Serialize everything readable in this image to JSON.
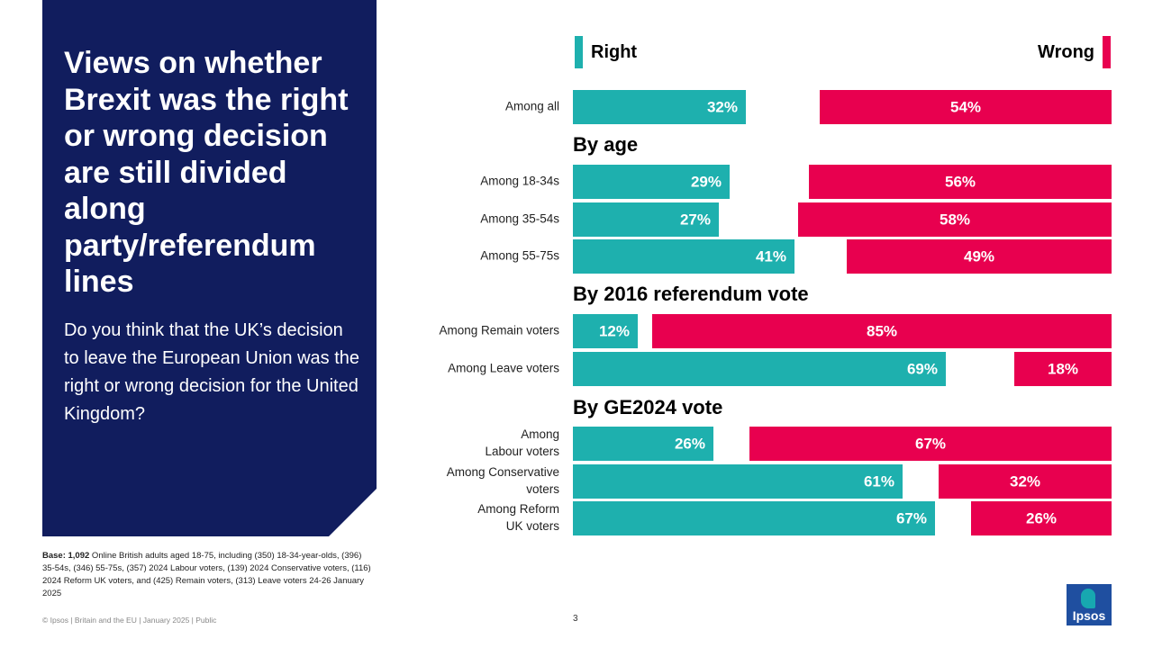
{
  "title": "Views on whether Brexit was the right or wrong decision are still divided along party/referendum lines",
  "question": "Do you think that the UK’s decision to leave the European Union was  the right or wrong decision for the United Kingdom?",
  "base": {
    "label": "Base: 1,092",
    "text": " Online British adults aged 18-75, including (350) 18-34-year-olds, (396) 35-54s, (346) 55-75s, (357) 2024 Labour voters, (139) 2024 Conservative voters, (116) 2024 Reform UK voters, and (425) Remain voters, (313) Leave voters 24-26 January 2025"
  },
  "footer": "© Ipsos | Britain and the EU | January 2025 | Public",
  "page_number": "3",
  "logo_text": "Ipsos",
  "colors": {
    "panel": "#111d5e",
    "right": "#1eb0ae",
    "wrong": "#e8004f"
  },
  "chart_data": {
    "type": "bar",
    "orientation": "horizontal-diverging",
    "series_names": [
      "Right",
      "Wrong"
    ],
    "unit": "%",
    "rows": [
      {
        "kind": "row",
        "label": [
          "Among all"
        ],
        "right": 32,
        "wrong": 54
      },
      {
        "kind": "header",
        "label": "By age"
      },
      {
        "kind": "row",
        "label": [
          "Among 18-34s"
        ],
        "right": 29,
        "wrong": 56
      },
      {
        "kind": "row",
        "label": [
          "Among 35-54s"
        ],
        "right": 27,
        "wrong": 58
      },
      {
        "kind": "row",
        "label": [
          "Among 55-75s"
        ],
        "right": 41,
        "wrong": 49
      },
      {
        "kind": "header",
        "label": "By 2016 referendum vote"
      },
      {
        "kind": "row",
        "label": [
          "Among Remain voters"
        ],
        "right": 12,
        "wrong": 85
      },
      {
        "kind": "row",
        "label": [
          "Among Leave voters"
        ],
        "right": 69,
        "wrong": 18
      },
      {
        "kind": "header",
        "label": "By GE2024 vote"
      },
      {
        "kind": "row",
        "label": [
          "Among",
          "Labour voters"
        ],
        "right": 26,
        "wrong": 67
      },
      {
        "kind": "row",
        "label": [
          "Among Conservative",
          "voters"
        ],
        "right": 61,
        "wrong": 32
      },
      {
        "kind": "row",
        "label": [
          "Among Reform",
          "UK voters"
        ],
        "right": 67,
        "wrong": 26
      }
    ]
  }
}
